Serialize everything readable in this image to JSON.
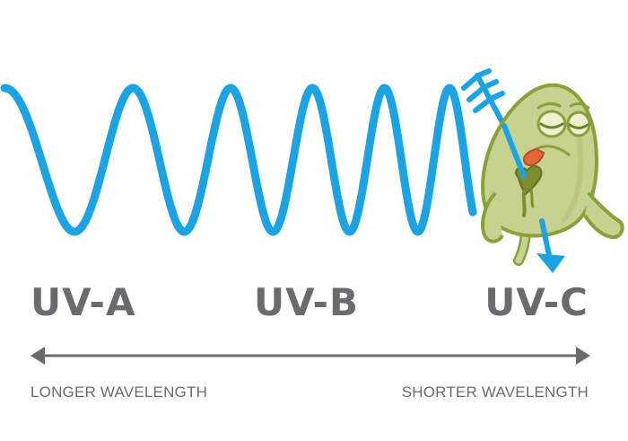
{
  "bands": [
    {
      "label": "UV-A"
    },
    {
      "label": "UV-B"
    },
    {
      "label": "UV-C"
    }
  ],
  "axis": {
    "left_label": "LONGER WAVELENGTH",
    "right_label": "SHORTER WAVELENGTH"
  },
  "colors": {
    "wave": "#1ba3e3",
    "text": "#6a6b6d",
    "germ_fill": "#c7d190",
    "germ_outline": "#89a13a",
    "germ_tongue": "#e0683a"
  },
  "icons": {
    "germ": "sad-germ-icon",
    "arrow": "arrow-icon",
    "axis": "double-arrow-icon"
  }
}
